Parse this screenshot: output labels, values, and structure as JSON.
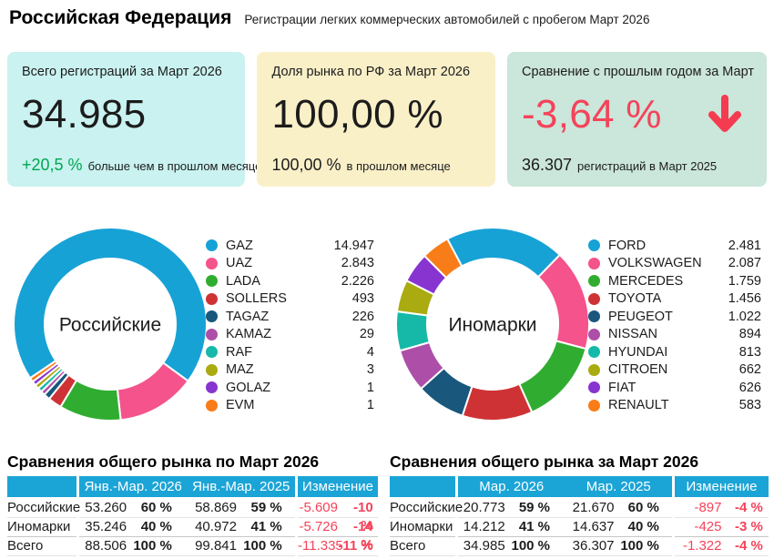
{
  "header": {
    "title": "Российская Федерация",
    "subtitle": "Регистрации легких коммерческих автомобилей с пробегом Март 2026"
  },
  "cards": {
    "total": {
      "title": "Всего регистраций за Март 2026",
      "value": "34.985",
      "highlight": "+20,5 %",
      "note": "больше чем в прошлом месяце"
    },
    "share": {
      "title": "Доля рынка по РФ за Март 2026",
      "value": "100,00 %",
      "highlight": "100,00 %",
      "note": "в прошлом месяце"
    },
    "yoy": {
      "title": "Сравнение с прошлым годом за Март",
      "value": "-3,64 %",
      "highlight": "36.307",
      "note": "регистраций в Март 2025",
      "trend_icon": "down-arrow"
    }
  },
  "colors": {
    "table_header_blue": "#1ba4d6",
    "negative_red": "#f4435a",
    "positive_green": "#00a651",
    "card_total_bg": "#c9f2f0",
    "card_share_bg": "#faf0c8",
    "card_yoy_bg": "#cbe6da",
    "palette": [
      "#17a2d6",
      "#f4538c",
      "#30ad30",
      "#cf3235",
      "#19577d",
      "#ad4fa8",
      "#16b9a8",
      "#a9ab10",
      "#8834d1",
      "#f87d18"
    ]
  },
  "chart_data": [
    {
      "type": "pie",
      "variant": "donut",
      "label": "Российские",
      "start_angle": -124,
      "min_slice_deg": 2.6,
      "legend_position": "right",
      "series": [
        {
          "name": "GAZ",
          "value": 14947,
          "display": "14.947"
        },
        {
          "name": "UAZ",
          "value": 2843,
          "display": "2.843"
        },
        {
          "name": "LADA",
          "value": 2226,
          "display": "2.226"
        },
        {
          "name": "SOLLERS",
          "value": 493,
          "display": "493"
        },
        {
          "name": "TAGAZ",
          "value": 226,
          "display": "226"
        },
        {
          "name": "KAMAZ",
          "value": 29,
          "display": "29"
        },
        {
          "name": "RAF",
          "value": 4,
          "display": "4"
        },
        {
          "name": "MAZ",
          "value": 3,
          "display": "3"
        },
        {
          "name": "GOLAZ",
          "value": 1,
          "display": "1"
        },
        {
          "name": "EVM",
          "value": 1,
          "display": "1"
        }
      ]
    },
    {
      "type": "pie",
      "variant": "donut",
      "label": "Иномарки",
      "start_angle": -28,
      "min_slice_deg": 2.6,
      "legend_position": "right",
      "series": [
        {
          "name": "FORD",
          "value": 2481,
          "display": "2.481"
        },
        {
          "name": "VOLKSWAGEN",
          "value": 2087,
          "display": "2.087"
        },
        {
          "name": "MERCEDES",
          "value": 1759,
          "display": "1.759"
        },
        {
          "name": "TOYOTA",
          "value": 1456,
          "display": "1.456"
        },
        {
          "name": "PEUGEOT",
          "value": 1022,
          "display": "1.022"
        },
        {
          "name": "NISSAN",
          "value": 894,
          "display": "894"
        },
        {
          "name": "HYUNDAI",
          "value": 813,
          "display": "813"
        },
        {
          "name": "CITROEN",
          "value": 662,
          "display": "662"
        },
        {
          "name": "FIAT",
          "value": 626,
          "display": "626"
        },
        {
          "name": "RENAULT",
          "value": 583,
          "display": "583"
        }
      ]
    },
    {
      "type": "table",
      "title": "Сравнения общего рынка по Март 2026",
      "columns": [
        "Янв.-Мар. 2026",
        "Янв.-Мар. 2025",
        "Изменение"
      ],
      "rows": [
        {
          "label": "Российские",
          "v1": "53.260",
          "p1": "60 %",
          "v2": "58.869",
          "p2": "59 %",
          "chg": "-5.609",
          "chg_pct": "-10 %"
        },
        {
          "label": "Иномарки",
          "v1": "35.246",
          "p1": "40 %",
          "v2": "40.972",
          "p2": "41 %",
          "chg": "-5.726",
          "chg_pct": "-14 %"
        },
        {
          "label": "Всего",
          "v1": "88.506",
          "p1": "100 %",
          "v2": "99.841",
          "p2": "100 %",
          "chg": "-11.335",
          "chg_pct": "-11 %"
        }
      ]
    },
    {
      "type": "table",
      "title": "Сравнения общего рынка за Март 2026",
      "columns": [
        "Мар. 2026",
        "Мар. 2025",
        "Изменение"
      ],
      "rows": [
        {
          "label": "Российские",
          "v1": "20.773",
          "p1": "59 %",
          "v2": "21.670",
          "p2": "60 %",
          "chg": "-897",
          "chg_pct": "-4 %"
        },
        {
          "label": "Иномарки",
          "v1": "14.212",
          "p1": "41 %",
          "v2": "14.637",
          "p2": "40 %",
          "chg": "-425",
          "chg_pct": "-3 %"
        },
        {
          "label": "Всего",
          "v1": "34.985",
          "p1": "100 %",
          "v2": "36.307",
          "p2": "100 %",
          "chg": "-1.322",
          "chg_pct": "-4 %"
        }
      ]
    }
  ]
}
